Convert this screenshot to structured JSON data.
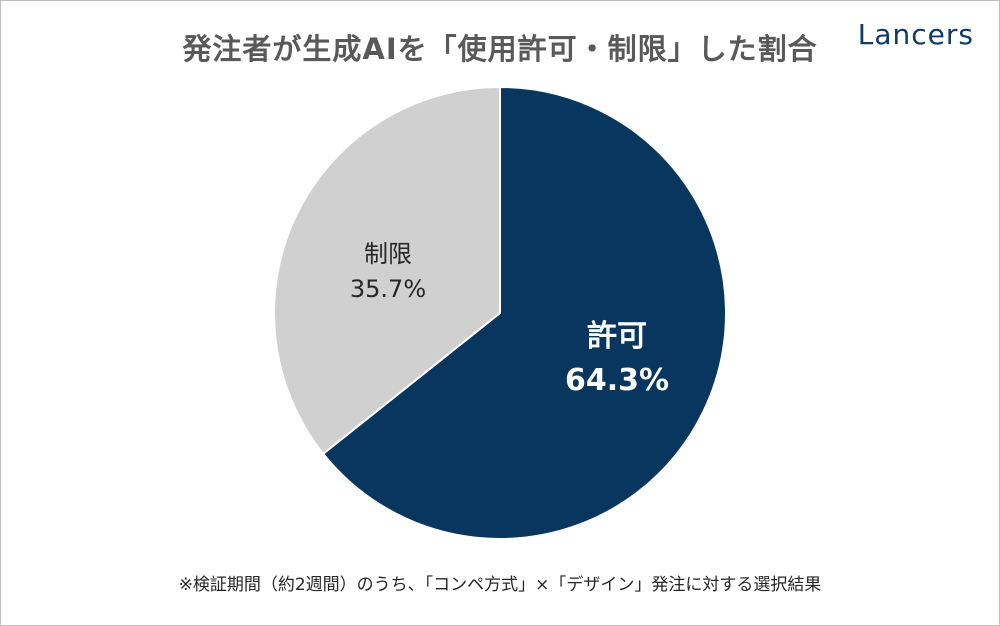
{
  "brand": "Lancers",
  "footnote": "※検証期間（約2週間）のうち、「コンペ方式」×「デザイン」発注に対する選択結果",
  "colors": {
    "permit": "#08365f",
    "restrict": "#d0d0d0",
    "permit_text": "#ffffff",
    "restrict_text": "#262626"
  },
  "chart_data": {
    "type": "pie",
    "title": "発注者が生成AIを「使用許可・制限」した割合",
    "slices": [
      {
        "label": "許可",
        "value": 64.3,
        "display": "64.3%",
        "color": "#08365f"
      },
      {
        "label": "制限",
        "value": 35.7,
        "display": "35.7%",
        "color": "#d0d0d0"
      }
    ],
    "start": "12 o'clock",
    "direction": "clockwise"
  }
}
